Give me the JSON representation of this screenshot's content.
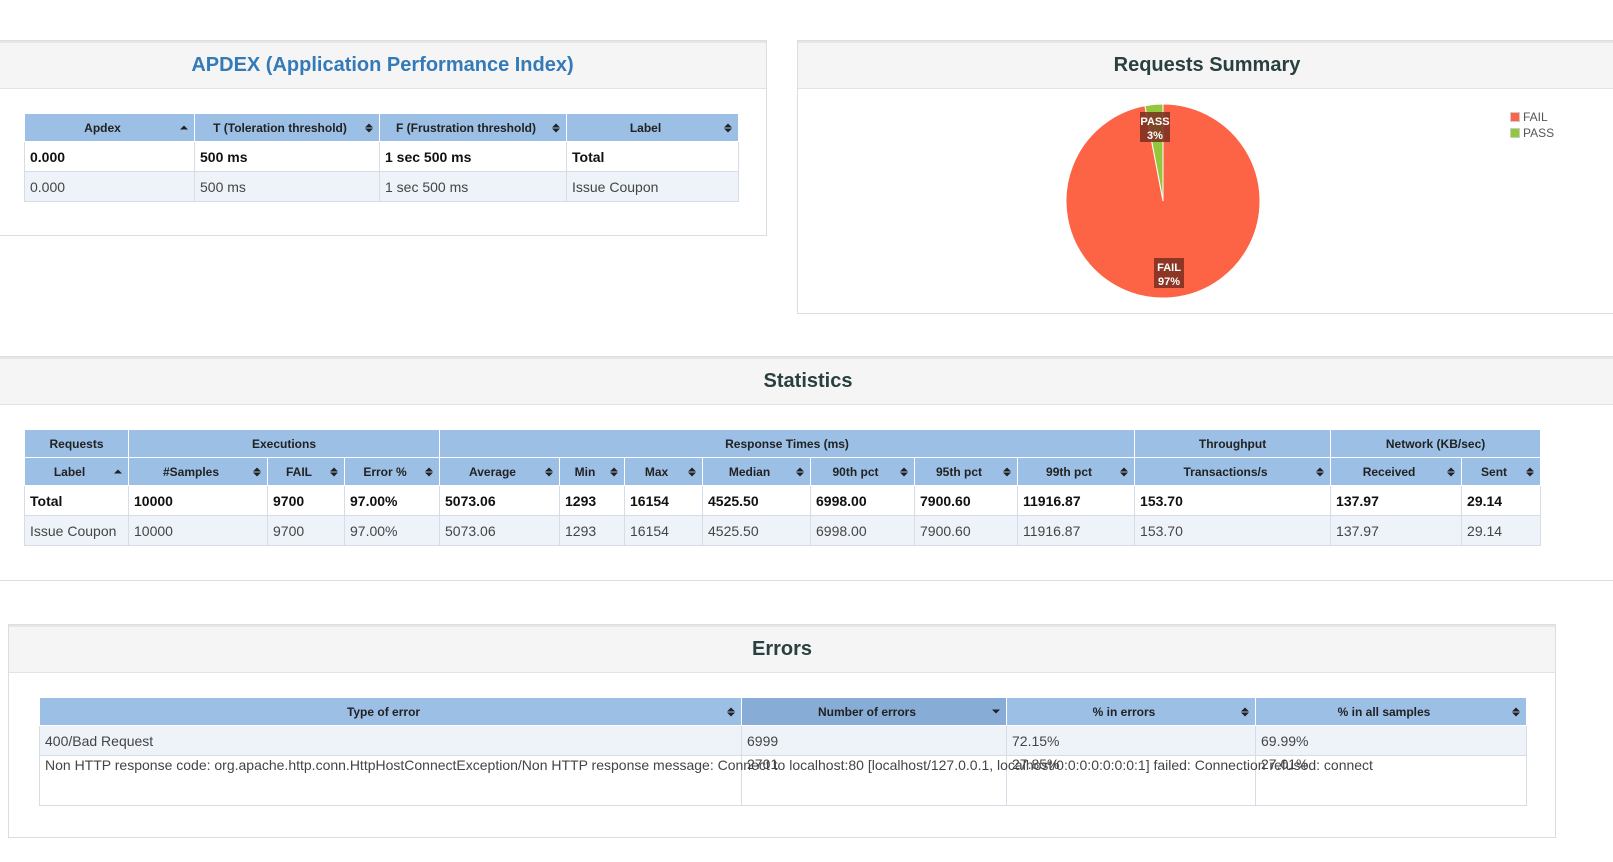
{
  "colors": {
    "header_bg": "#9cbfe6",
    "fail": "#fd6446",
    "pass": "#93c83c",
    "label_bg": "#7a2e20",
    "title_blue": "#337ab7"
  },
  "apdex": {
    "title": "APDEX (Application Performance Index)",
    "columns": [
      "Apdex",
      "T (Toleration threshold)",
      "F (Frustration threshold)",
      "Label"
    ],
    "rows": [
      [
        "0.000",
        "500 ms",
        "1 sec 500 ms",
        "Total"
      ],
      [
        "0.000",
        "500 ms",
        "1 sec 500 ms",
        "Issue Coupon"
      ]
    ]
  },
  "requests_summary": {
    "title": "Requests Summary",
    "legend": [
      "FAIL",
      "PASS"
    ]
  },
  "chart_data": {
    "type": "pie",
    "title": "Requests Summary",
    "slices": [
      {
        "label": "FAIL",
        "percent": 97,
        "text": "97%"
      },
      {
        "label": "PASS",
        "percent": 3,
        "text": "3%"
      }
    ]
  },
  "statistics": {
    "title": "Statistics",
    "groups": [
      "Requests",
      "Executions",
      "Response Times (ms)",
      "Throughput",
      "Network (KB/sec)"
    ],
    "columns": [
      "Label",
      "#Samples",
      "FAIL",
      "Error %",
      "Average",
      "Min",
      "Max",
      "Median",
      "90th pct",
      "95th pct",
      "99th pct",
      "Transactions/s",
      "Received",
      "Sent"
    ],
    "rows": [
      [
        "Total",
        "10000",
        "9700",
        "97.00%",
        "5073.06",
        "1293",
        "16154",
        "4525.50",
        "6998.00",
        "7900.60",
        "11916.87",
        "153.70",
        "137.97",
        "29.14"
      ],
      [
        "Issue Coupon",
        "10000",
        "9700",
        "97.00%",
        "5073.06",
        "1293",
        "16154",
        "4525.50",
        "6998.00",
        "7900.60",
        "11916.87",
        "153.70",
        "137.97",
        "29.14"
      ]
    ]
  },
  "errors": {
    "title": "Errors",
    "columns": [
      "Type of error",
      "Number of errors",
      "% in errors",
      "% in all samples"
    ],
    "rows": [
      [
        "400/Bad Request",
        "6999",
        "72.15%",
        "69.99%"
      ],
      [
        "Non HTTP response code: org.apache.http.conn.HttpHostConnectException/Non HTTP response message: Connect to localhost:80 [localhost/127.0.0.1, localhost/0:0:0:0:0:0:0:1] failed: Connection refused: connect",
        "2701",
        "27.85%",
        "27.01%"
      ]
    ]
  }
}
